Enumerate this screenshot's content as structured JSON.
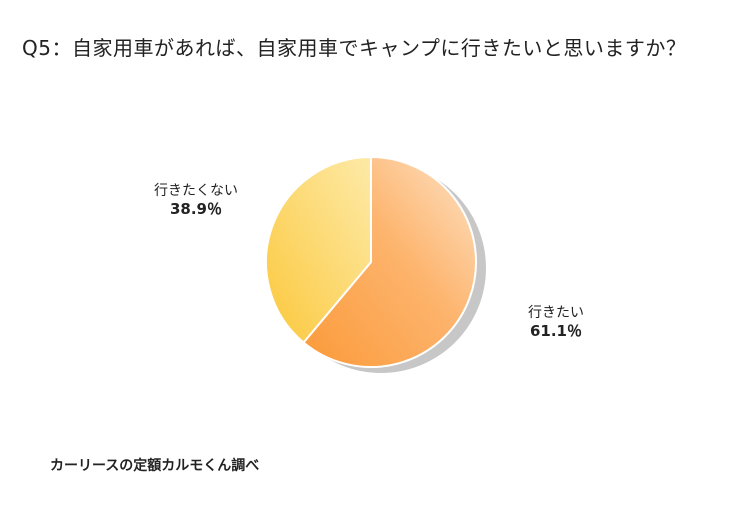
{
  "title": "Q5：自家用車があれば、自家用車でキャンプに行きたいと思いますか？",
  "source": "カーリースの定額カルモくん調べ",
  "chart_data": {
    "type": "pie",
    "title": "Q5：自家用車があれば、自家用車でキャンプに行きたいと思いますか？",
    "slices": [
      {
        "label": "行きたい",
        "value": 61.1,
        "display": "61.1％",
        "color_light": "#fde3c8",
        "color_dark": "#fb9a3a"
      },
      {
        "label": "行きたくない",
        "value": 38.9,
        "display": "38.9％",
        "color_light": "#fde7a0",
        "color_dark": "#fcc83c"
      }
    ],
    "start_angle_deg": 0,
    "direction": "clockwise",
    "shadow": true,
    "legend": "none"
  }
}
